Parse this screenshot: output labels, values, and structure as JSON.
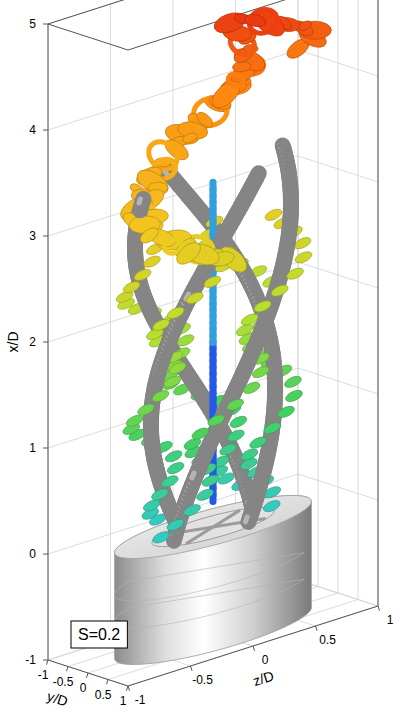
{
  "chart_data": {
    "type": "isosurface3d",
    "xlabel": "x/D",
    "ylabel": "y/D",
    "zlabel": "z/D",
    "annotations": [
      "S=0.2"
    ],
    "xlim": [
      -1,
      5
    ],
    "xticks": [
      -1,
      0,
      1,
      2,
      3,
      4,
      5
    ],
    "ylim": [
      -1,
      1
    ],
    "yticks": [
      -1,
      -0.5,
      0,
      0.5,
      1
    ],
    "zlim": [
      -1,
      1
    ],
    "zticks": [
      -1,
      -0.5,
      0,
      0.5,
      1
    ],
    "grid": true
  }
}
